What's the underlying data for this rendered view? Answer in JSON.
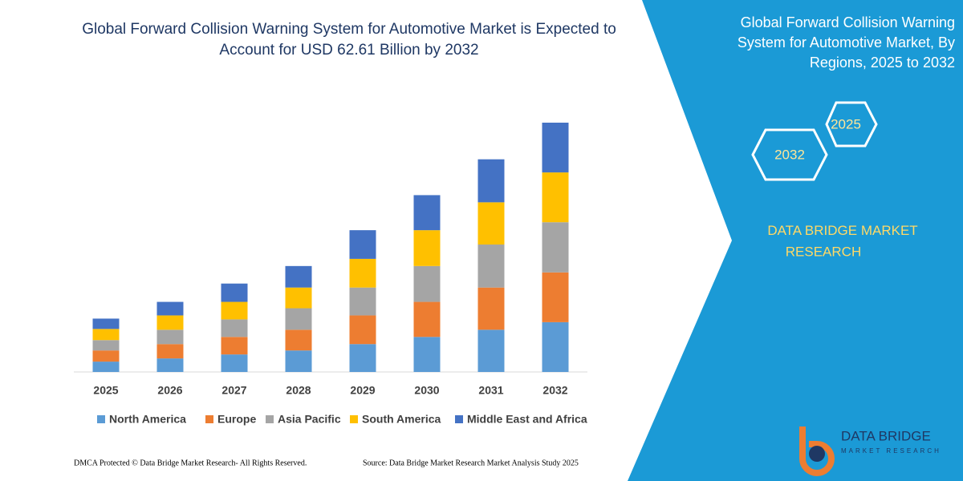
{
  "chart_data": {
    "type": "stacked_bar",
    "title": "Global Forward Collision Warning System for Automotive Market is Expected to Account for USD 62.61 Billion by 2032",
    "categories": [
      "2025",
      "2026",
      "2027",
      "2028",
      "2029",
      "2030",
      "2031",
      "2032"
    ],
    "series": [
      {
        "name": "North America",
        "color": "#5b9bd5",
        "values": [
          2.6,
          3.4,
          4.4,
          5.4,
          7.0,
          8.8,
          10.6,
          12.5
        ]
      },
      {
        "name": "Europe",
        "color": "#ed7d31",
        "values": [
          2.8,
          3.6,
          4.4,
          5.2,
          7.2,
          8.8,
          10.6,
          12.5
        ]
      },
      {
        "name": "Asia Pacific",
        "color": "#a5a5a5",
        "values": [
          2.6,
          3.6,
          4.4,
          5.4,
          7.0,
          9.0,
          10.8,
          12.6
        ]
      },
      {
        "name": "South America",
        "color": "#ffc000",
        "values": [
          2.8,
          3.6,
          4.4,
          5.2,
          7.2,
          9.0,
          10.6,
          12.5
        ]
      },
      {
        "name": "Middle East and Africa",
        "color": "#4472c4",
        "values": [
          2.6,
          3.4,
          4.6,
          5.4,
          7.2,
          8.8,
          10.8,
          12.5
        ]
      }
    ]
  },
  "panel": {
    "title": "Global Forward Collision Warning System for Automotive Market, By Regions, 2025 to 2032",
    "hex_start": "2025",
    "hex_end": "2032",
    "brand": "DATA BRIDGE MARKET RESEARCH"
  },
  "logo": {
    "name": "DATA BRIDGE",
    "tagline": "MARKET RESEARCH"
  },
  "footer": {
    "left": "DMCA Protected © Data Bridge Market Research-  All Rights Reserved.",
    "right": "Source: Data Bridge Market Research  Market Analysis Study 2025"
  }
}
